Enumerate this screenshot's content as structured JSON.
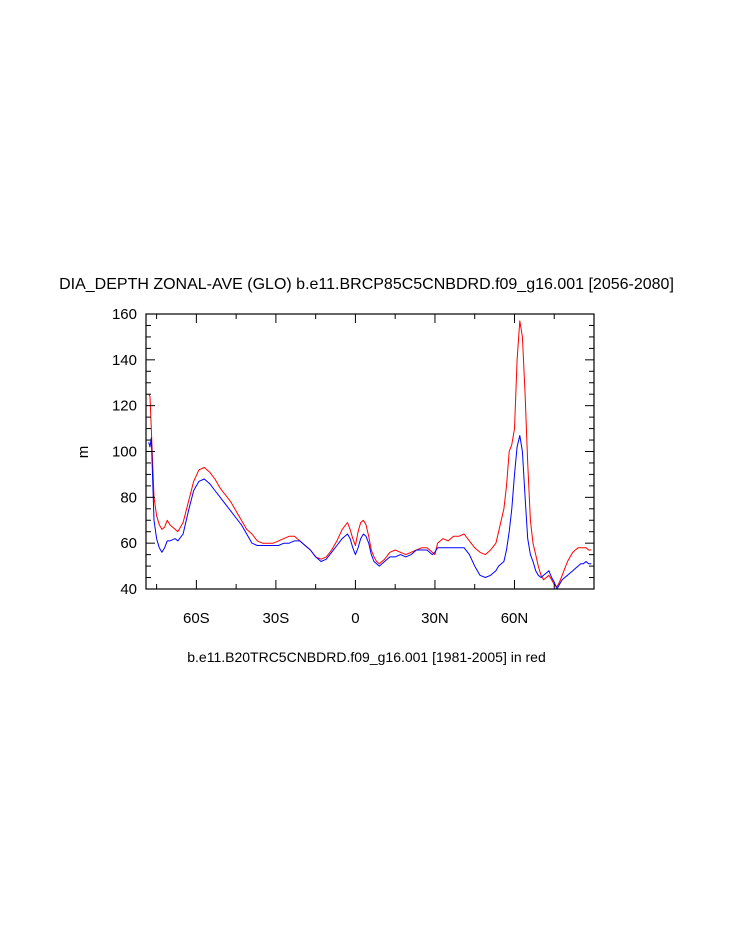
{
  "chart_data": {
    "type": "line",
    "title": "DIA_DEPTH ZONAL-AVE (GLO) b.e11.BRCP85C5CNBDRD.f09_g16.001 [2056-2080]",
    "subtitle": "b.e11.B20TRC5CNBDRD.f09_g16.001 [1981-2005] in red",
    "xlabel": "",
    "ylabel": "m",
    "xlim": [
      -79,
      90
    ],
    "ylim": [
      40,
      160
    ],
    "x_ticks": [
      {
        "value": -60,
        "label": "60S"
      },
      {
        "value": -30,
        "label": "30S"
      },
      {
        "value": 0,
        "label": "0"
      },
      {
        "value": 30,
        "label": "30N"
      },
      {
        "value": 60,
        "label": "60N"
      }
    ],
    "y_ticks": [
      40,
      60,
      80,
      100,
      120,
      140,
      160
    ],
    "grid": false,
    "series": [
      {
        "color": "#ff0000",
        "x": [
          -78,
          -77.5,
          -77,
          -76,
          -75,
          -74,
          -73,
          -72,
          -71,
          -70,
          -68,
          -67,
          -65,
          -63,
          -61,
          -59,
          -57,
          -55,
          -53,
          -51,
          -49,
          -47,
          -45,
          -43,
          -41,
          -39,
          -37,
          -35,
          -33,
          -31,
          -29,
          -27,
          -25,
          -23,
          -21,
          -19,
          -17,
          -15,
          -13,
          -11,
          -9,
          -7,
          -5,
          -3,
          -2,
          -1,
          0,
          1,
          2,
          3,
          4,
          5,
          6,
          7,
          8,
          9,
          11,
          13,
          15,
          17,
          19,
          21,
          23,
          25,
          27,
          29,
          30,
          31,
          33,
          35,
          37,
          39,
          41,
          43,
          45,
          47,
          49,
          51,
          53,
          54,
          56,
          57,
          58,
          59,
          60,
          61,
          62,
          63,
          64,
          65,
          66,
          67,
          68,
          69,
          70,
          71,
          72,
          73,
          74,
          75,
          76,
          77,
          78,
          79,
          80,
          81,
          82,
          83,
          84,
          85,
          86,
          87,
          88,
          89
        ],
        "values": [
          125,
          124,
          110,
          80,
          72,
          68,
          66,
          67,
          70,
          68,
          66,
          65,
          69,
          78,
          87,
          92,
          93,
          91,
          88,
          84,
          81,
          78,
          74,
          70,
          66,
          64,
          61,
          60,
          60,
          60,
          61,
          62,
          63,
          63,
          61,
          59,
          57,
          54,
          53,
          54,
          57,
          61,
          66,
          69,
          66,
          62,
          59,
          65,
          69,
          70,
          68,
          63,
          57,
          54,
          52,
          51,
          53,
          56,
          57,
          56,
          55,
          56,
          57,
          58,
          58,
          56,
          55,
          60,
          62,
          61,
          63,
          63,
          64,
          61,
          58,
          56,
          55,
          57,
          60,
          65,
          75,
          85,
          100,
          103,
          110,
          140,
          157,
          150,
          125,
          95,
          70,
          60,
          55,
          50,
          46,
          44,
          45,
          46,
          44,
          42,
          41,
          43,
          46,
          49,
          52,
          54,
          56,
          57,
          58,
          58,
          58,
          58,
          57,
          57
        ]
      },
      {
        "color": "#0000ff",
        "x": [
          -78,
          -77.5,
          -77,
          -76,
          -75,
          -74,
          -73,
          -72,
          -71,
          -70,
          -68,
          -67,
          -65,
          -63,
          -61,
          -59,
          -57,
          -55,
          -53,
          -51,
          -49,
          -47,
          -45,
          -43,
          -41,
          -39,
          -37,
          -35,
          -33,
          -31,
          -29,
          -27,
          -25,
          -23,
          -21,
          -19,
          -17,
          -15,
          -13,
          -11,
          -9,
          -7,
          -5,
          -3,
          -2,
          -1,
          0,
          1,
          2,
          3,
          4,
          5,
          6,
          7,
          8,
          9,
          11,
          13,
          15,
          17,
          19,
          21,
          23,
          25,
          27,
          29,
          30,
          31,
          33,
          35,
          37,
          39,
          41,
          43,
          45,
          47,
          49,
          51,
          53,
          54,
          56,
          57,
          58,
          59,
          60,
          61,
          62,
          63,
          64,
          65,
          66,
          67,
          68,
          69,
          70,
          71,
          72,
          73,
          74,
          75,
          76,
          77,
          78,
          79,
          80,
          81,
          82,
          83,
          84,
          85,
          86,
          87,
          88,
          89
        ],
        "values": [
          104,
          102,
          106,
          70,
          62,
          58,
          56,
          58,
          61,
          61,
          62,
          61,
          64,
          74,
          83,
          87,
          88,
          86,
          83,
          80,
          77,
          74,
          71,
          68,
          64,
          60,
          59,
          59,
          59,
          59,
          59,
          60,
          60,
          61,
          61,
          59,
          57,
          54,
          52,
          53,
          56,
          59,
          62,
          64,
          62,
          58,
          55,
          58,
          62,
          64,
          63,
          60,
          55,
          52,
          51,
          50,
          52,
          54,
          54,
          55,
          54,
          55,
          57,
          57,
          57,
          55,
          56,
          58,
          58,
          58,
          58,
          58,
          58,
          55,
          50,
          46,
          45,
          46,
          48,
          50,
          52,
          57,
          65,
          75,
          90,
          102,
          107,
          100,
          80,
          62,
          55,
          52,
          48,
          46,
          45,
          46,
          47,
          48,
          45,
          43,
          40,
          42,
          44,
          45,
          46,
          47,
          48,
          49,
          50,
          51,
          51,
          52,
          51,
          51
        ]
      }
    ]
  }
}
